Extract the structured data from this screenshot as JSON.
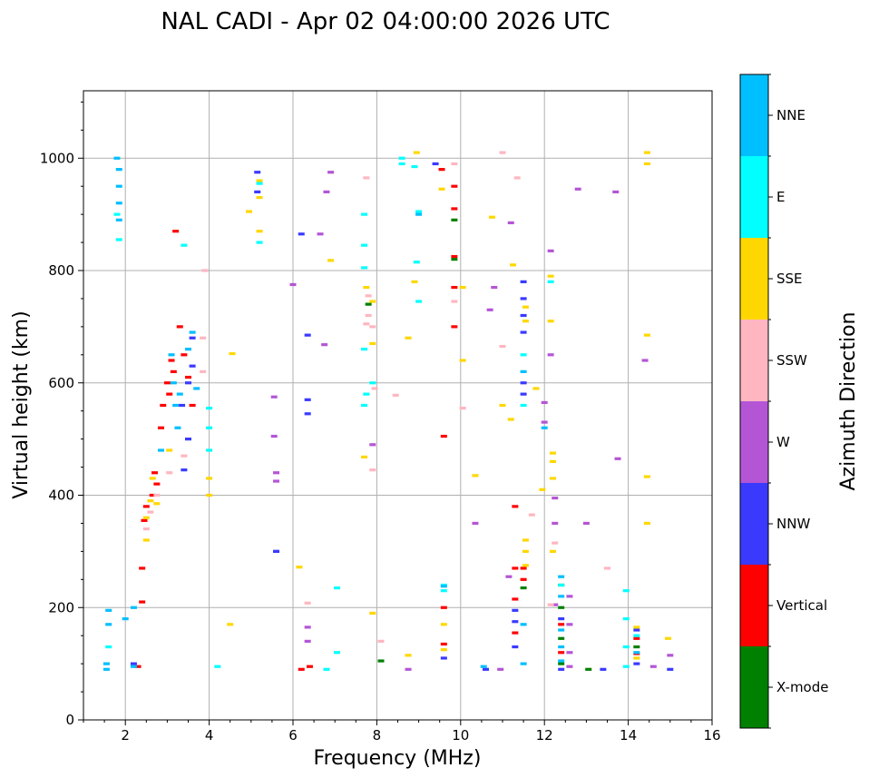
{
  "chart_data": {
    "type": "scatter",
    "title": "NAL CADI - Apr 02 04:00:00 2026 UTC",
    "xlabel": "Frequency (MHz)",
    "ylabel": "Virtual height (km)",
    "xlim": [
      1,
      16
    ],
    "ylim": [
      0,
      1120
    ],
    "xticks": [
      2,
      4,
      6,
      8,
      10,
      12,
      14,
      16
    ],
    "yticks": [
      0,
      200,
      400,
      600,
      800,
      1000
    ],
    "grid": true,
    "colorbar": {
      "label": "Azimuth Direction",
      "categories": [
        {
          "name": "X-mode",
          "color": "#008000"
        },
        {
          "name": "Vertical",
          "color": "#ff0000"
        },
        {
          "name": "NNW",
          "color": "#3a3aff"
        },
        {
          "name": "W",
          "color": "#b455d6"
        },
        {
          "name": "SSW",
          "color": "#ffb6c1"
        },
        {
          "name": "SSE",
          "color": "#ffd700"
        },
        {
          "name": "E",
          "color": "#00ffff"
        },
        {
          "name": "NNE",
          "color": "#00bfff"
        }
      ]
    },
    "series": [
      {
        "name": "X-mode",
        "points": [
          [
            8.1,
            105
          ],
          [
            9.85,
            890
          ],
          [
            9.85,
            820
          ],
          [
            12.4,
            100
          ],
          [
            12.4,
            145
          ],
          [
            12.4,
            200
          ],
          [
            12.4,
            240
          ],
          [
            13.05,
            90
          ],
          [
            14.2,
            130
          ],
          [
            11.5,
            235
          ],
          [
            7.8,
            740
          ]
        ]
      },
      {
        "name": "Vertical",
        "points": [
          [
            3.2,
            870
          ],
          [
            3.1,
            640
          ],
          [
            3.0,
            600
          ],
          [
            2.9,
            560
          ],
          [
            3.15,
            620
          ],
          [
            3.05,
            580
          ],
          [
            2.85,
            520
          ],
          [
            2.7,
            440
          ],
          [
            2.75,
            420
          ],
          [
            2.65,
            400
          ],
          [
            2.5,
            380
          ],
          [
            2.45,
            355
          ],
          [
            2.4,
            270
          ],
          [
            2.4,
            210
          ],
          [
            2.3,
            95
          ],
          [
            6.2,
            90
          ],
          [
            6.4,
            95
          ],
          [
            9.6,
            505
          ],
          [
            9.6,
            200
          ],
          [
            9.6,
            135
          ],
          [
            9.55,
            980
          ],
          [
            9.85,
            950
          ],
          [
            9.85,
            910
          ],
          [
            9.85,
            825
          ],
          [
            9.85,
            770
          ],
          [
            9.85,
            700
          ],
          [
            11.3,
            380
          ],
          [
            11.3,
            270
          ],
          [
            11.3,
            215
          ],
          [
            11.3,
            155
          ],
          [
            11.5,
            270
          ],
          [
            11.5,
            250
          ],
          [
            12.4,
            170
          ],
          [
            12.4,
            120
          ],
          [
            14.2,
            145
          ],
          [
            14.2,
            118
          ],
          [
            3.5,
            610
          ],
          [
            3.6,
            560
          ],
          [
            3.3,
            700
          ],
          [
            3.4,
            650
          ]
        ]
      },
      {
        "name": "NNW",
        "points": [
          [
            2.2,
            100
          ],
          [
            3.6,
            680
          ],
          [
            3.6,
            630
          ],
          [
            3.5,
            600
          ],
          [
            3.35,
            560
          ],
          [
            3.5,
            500
          ],
          [
            3.4,
            445
          ],
          [
            5.6,
            300
          ],
          [
            5.6,
            300
          ],
          [
            6.35,
            685
          ],
          [
            6.35,
            570
          ],
          [
            6.35,
            545
          ],
          [
            6.2,
            865
          ],
          [
            5.15,
            975
          ],
          [
            5.15,
            940
          ],
          [
            9.4,
            990
          ],
          [
            9.6,
            110
          ],
          [
            10.6,
            90
          ],
          [
            11.5,
            780
          ],
          [
            11.5,
            750
          ],
          [
            11.5,
            720
          ],
          [
            11.5,
            690
          ],
          [
            11.5,
            600
          ],
          [
            11.5,
            580
          ],
          [
            12.4,
            90
          ],
          [
            12.4,
            180
          ],
          [
            13.4,
            90
          ],
          [
            14.2,
            160
          ],
          [
            14.2,
            100
          ],
          [
            15.0,
            90
          ],
          [
            11.3,
            130
          ],
          [
            11.3,
            175
          ],
          [
            11.3,
            195
          ]
        ]
      },
      {
        "name": "W",
        "points": [
          [
            5.6,
            440
          ],
          [
            5.6,
            425
          ],
          [
            5.55,
            505
          ],
          [
            5.55,
            575
          ],
          [
            6.0,
            775
          ],
          [
            6.35,
            165
          ],
          [
            6.35,
            140
          ],
          [
            6.65,
            865
          ],
          [
            6.75,
            668
          ],
          [
            6.8,
            940
          ],
          [
            6.9,
            975
          ],
          [
            7.9,
            490
          ],
          [
            8.75,
            90
          ],
          [
            10.35,
            350
          ],
          [
            10.7,
            730
          ],
          [
            10.8,
            770
          ],
          [
            10.95,
            90
          ],
          [
            11.15,
            255
          ],
          [
            11.2,
            885
          ],
          [
            12.0,
            565
          ],
          [
            12.15,
            835
          ],
          [
            12.15,
            650
          ],
          [
            12.25,
            395
          ],
          [
            12.25,
            350
          ],
          [
            12.25,
            205
          ],
          [
            12.6,
            220
          ],
          [
            12.6,
            170
          ],
          [
            12.6,
            120
          ],
          [
            12.6,
            95
          ],
          [
            12.8,
            945
          ],
          [
            13.0,
            350
          ],
          [
            13.7,
            940
          ],
          [
            13.75,
            465
          ],
          [
            14.4,
            640
          ],
          [
            14.6,
            95
          ],
          [
            15.0,
            115
          ],
          [
            12.0,
            530
          ]
        ]
      },
      {
        "name": "SSW",
        "points": [
          [
            2.5,
            340
          ],
          [
            2.6,
            370
          ],
          [
            2.75,
            400
          ],
          [
            3.05,
            440
          ],
          [
            3.4,
            470
          ],
          [
            3.85,
            680
          ],
          [
            3.85,
            620
          ],
          [
            3.9,
            800
          ],
          [
            6.35,
            208
          ],
          [
            7.75,
            965
          ],
          [
            7.8,
            720
          ],
          [
            7.9,
            700
          ],
          [
            7.95,
            590
          ],
          [
            7.9,
            445
          ],
          [
            8.1,
            140
          ],
          [
            8.45,
            578
          ],
          [
            9.85,
            990
          ],
          [
            9.85,
            745
          ],
          [
            10.05,
            555
          ],
          [
            11.0,
            1010
          ],
          [
            11.0,
            665
          ],
          [
            11.35,
            965
          ],
          [
            11.7,
            365
          ],
          [
            12.15,
            205
          ],
          [
            12.25,
            315
          ],
          [
            13.5,
            270
          ],
          [
            7.75,
            705
          ],
          [
            7.8,
            755
          ]
        ]
      },
      {
        "name": "SSE",
        "points": [
          [
            2.65,
            430
          ],
          [
            2.6,
            390
          ],
          [
            2.5,
            320
          ],
          [
            2.5,
            360
          ],
          [
            2.75,
            385
          ],
          [
            3.05,
            480
          ],
          [
            4.0,
            400
          ],
          [
            4.0,
            430
          ],
          [
            4.55,
            652
          ],
          [
            4.5,
            170
          ],
          [
            4.95,
            905
          ],
          [
            5.2,
            960
          ],
          [
            5.2,
            870
          ],
          [
            5.2,
            930
          ],
          [
            6.15,
            272
          ],
          [
            6.9,
            818
          ],
          [
            7.75,
            770
          ],
          [
            7.7,
            468
          ],
          [
            7.9,
            745
          ],
          [
            7.9,
            670
          ],
          [
            7.9,
            190
          ],
          [
            8.75,
            115
          ],
          [
            8.75,
            680
          ],
          [
            8.9,
            780
          ],
          [
            8.95,
            1010
          ],
          [
            9.55,
            945
          ],
          [
            9.6,
            170
          ],
          [
            9.6,
            125
          ],
          [
            10.05,
            640
          ],
          [
            10.05,
            770
          ],
          [
            10.35,
            435
          ],
          [
            10.75,
            895
          ],
          [
            11.0,
            560
          ],
          [
            11.2,
            535
          ],
          [
            11.25,
            810
          ],
          [
            11.55,
            320
          ],
          [
            11.55,
            300
          ],
          [
            11.55,
            275
          ],
          [
            11.55,
            735
          ],
          [
            11.55,
            710
          ],
          [
            11.8,
            590
          ],
          [
            11.95,
            410
          ],
          [
            12.15,
            790
          ],
          [
            12.15,
            710
          ],
          [
            12.2,
            475
          ],
          [
            12.2,
            460
          ],
          [
            12.2,
            430
          ],
          [
            12.2,
            300
          ],
          [
            14.2,
            165
          ],
          [
            14.2,
            110
          ],
          [
            14.45,
            1010
          ],
          [
            14.45,
            990
          ],
          [
            14.45,
            685
          ],
          [
            14.45,
            433
          ],
          [
            14.45,
            350
          ],
          [
            14.95,
            145
          ]
        ]
      },
      {
        "name": "E",
        "points": [
          [
            1.6,
            130
          ],
          [
            1.8,
            900
          ],
          [
            1.85,
            855
          ],
          [
            3.4,
            845
          ],
          [
            4.0,
            555
          ],
          [
            4.0,
            520
          ],
          [
            4.0,
            480
          ],
          [
            4.2,
            95
          ],
          [
            5.2,
            955
          ],
          [
            5.2,
            850
          ],
          [
            7.05,
            235
          ],
          [
            7.05,
            120
          ],
          [
            7.7,
            900
          ],
          [
            7.7,
            845
          ],
          [
            7.7,
            805
          ],
          [
            7.7,
            660
          ],
          [
            7.7,
            560
          ],
          [
            7.75,
            580
          ],
          [
            8.6,
            1000
          ],
          [
            8.6,
            990
          ],
          [
            8.9,
            985
          ],
          [
            8.95,
            815
          ],
          [
            9.0,
            905
          ],
          [
            9.0,
            745
          ],
          [
            9.6,
            240
          ],
          [
            9.6,
            230
          ],
          [
            11.5,
            650
          ],
          [
            11.5,
            560
          ],
          [
            12.15,
            780
          ],
          [
            12.4,
            240
          ],
          [
            13.95,
            230
          ],
          [
            13.95,
            180
          ],
          [
            13.95,
            130
          ],
          [
            13.95,
            95
          ],
          [
            14.2,
            150
          ],
          [
            7.9,
            600
          ],
          [
            6.8,
            90
          ]
        ]
      },
      {
        "name": "NNE",
        "points": [
          [
            1.55,
            100
          ],
          [
            1.55,
            90
          ],
          [
            1.6,
            195
          ],
          [
            1.6,
            170
          ],
          [
            1.8,
            1000
          ],
          [
            1.85,
            980
          ],
          [
            1.85,
            950
          ],
          [
            1.85,
            920
          ],
          [
            1.85,
            890
          ],
          [
            2.0,
            180
          ],
          [
            2.2,
            200
          ],
          [
            2.2,
            95
          ],
          [
            3.1,
            650
          ],
          [
            3.15,
            600
          ],
          [
            3.2,
            560
          ],
          [
            3.25,
            520
          ],
          [
            3.3,
            580
          ],
          [
            3.5,
            660
          ],
          [
            3.6,
            690
          ],
          [
            3.7,
            590
          ],
          [
            2.85,
            480
          ],
          [
            9.6,
            238
          ],
          [
            9.0,
            900
          ],
          [
            10.55,
            95
          ],
          [
            11.5,
            170
          ],
          [
            11.5,
            100
          ],
          [
            11.5,
            620
          ],
          [
            12.0,
            520
          ],
          [
            12.4,
            255
          ],
          [
            12.4,
            220
          ],
          [
            12.4,
            160
          ],
          [
            12.4,
            130
          ],
          [
            12.4,
            105
          ],
          [
            14.2,
            120
          ]
        ]
      }
    ]
  }
}
